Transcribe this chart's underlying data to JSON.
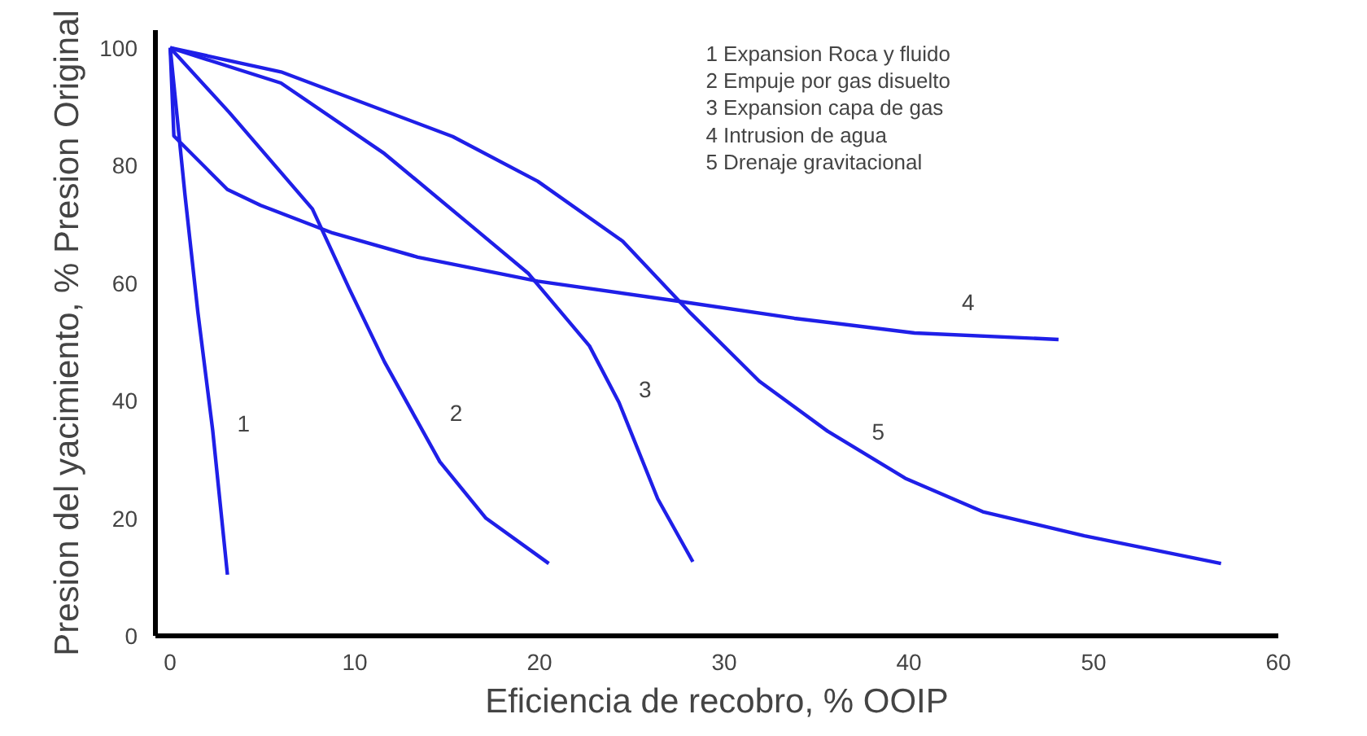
{
  "chart_data": {
    "type": "line",
    "xlabel": "Eficiencia de recobro, % OOIP",
    "ylabel": "Presion del yacimiento, % Presion Original",
    "xlim": [
      -0.8,
      60
    ],
    "ylim": [
      0,
      103
    ],
    "xticks": [
      0,
      10,
      20,
      30,
      40,
      50,
      60
    ],
    "yticks": [
      0,
      20,
      40,
      60,
      80,
      100
    ],
    "grid": false,
    "legend": false,
    "marker": "none",
    "line_style": "solid",
    "series": [
      {
        "name": "1",
        "color": "#1f1fe8",
        "x": [
          0,
          0.8,
          1.5,
          2.3,
          3.1
        ],
        "values": [
          100,
          75,
          55,
          35,
          10.4
        ]
      },
      {
        "name": "2",
        "color": "#1f1fe8",
        "x": [
          0,
          3.2,
          7.7,
          9.7,
          11.6,
          14.6,
          17.1,
          20.5
        ],
        "values": [
          100,
          89,
          72.6,
          59,
          46.6,
          29.6,
          20,
          12.3
        ]
      },
      {
        "name": "3",
        "color": "#1f1fe8",
        "x": [
          0,
          6,
          11.6,
          16.2,
          19.4,
          22.7,
          24.3,
          26.4,
          28.3
        ],
        "values": [
          100,
          94,
          82,
          70,
          61.6,
          49.3,
          39.7,
          23.3,
          12.6
        ]
      },
      {
        "name": "4",
        "color": "#1f1fe8",
        "x": [
          0,
          0.2,
          3.1,
          4.9,
          8.8,
          13.4,
          19.9,
          27.3,
          33.8,
          40.3,
          48.1
        ],
        "values": [
          100,
          85,
          75.9,
          73.2,
          68.5,
          64.4,
          60.3,
          57,
          54,
          51.5,
          50.4
        ]
      },
      {
        "name": "5",
        "color": "#1f1fe8",
        "x": [
          0,
          6,
          15.3,
          19.9,
          24.5,
          28.2,
          31.9,
          35.6,
          39.8,
          44,
          49.5,
          56.9
        ],
        "values": [
          100,
          95.9,
          84.9,
          77.3,
          67.1,
          54.8,
          43.3,
          34.8,
          26.8,
          21.1,
          17,
          12.3
        ]
      }
    ],
    "annotations": [
      "1  Expansion Roca y fluido",
      "2  Empuje por gas disuelto",
      "3  Expansion capa de gas",
      "4  Intrusion de agua",
      "5  Drenaje gravitacional"
    ]
  }
}
